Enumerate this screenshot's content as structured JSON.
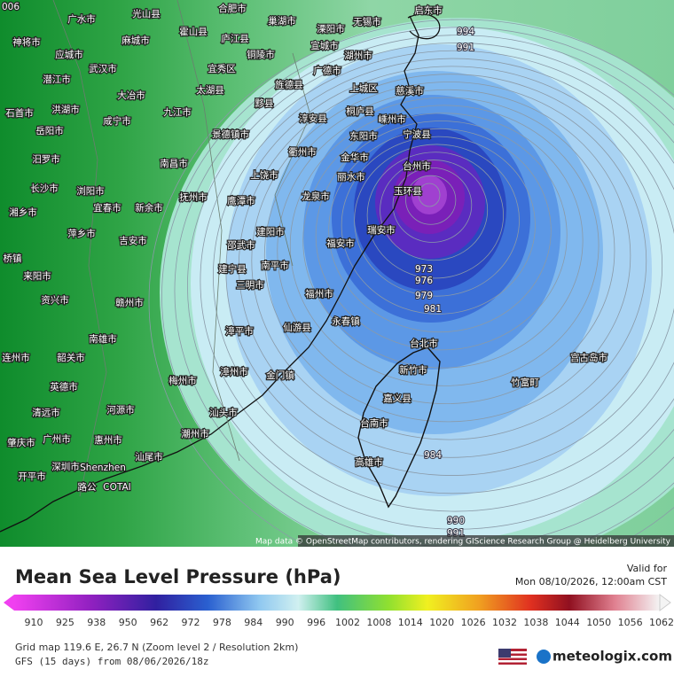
{
  "map": {
    "corner_label": "006",
    "cities": [
      "广水市",
      "光山县",
      "合肥市",
      "巢湖市",
      "溧阳市",
      "无锡市",
      "启东市",
      "神将市",
      "麻城市",
      "霍山县",
      "庐江县",
      "铜陵市",
      "宣城市",
      "湖州市",
      "应城市",
      "武汉市",
      "宜秀区",
      "广德市",
      "潜江市",
      "大冶市",
      "太湖县",
      "旌德县",
      "上城区",
      "慈溪市",
      "石首市",
      "洪湖市",
      "咸宁市",
      "九江市",
      "黟县",
      "淳安县",
      "桐庐县",
      "嵊州市",
      "岳阳市",
      "景德镇市",
      "东阳市",
      "宁波县",
      "汨罗市",
      "南昌市",
      "衢州市",
      "金华市",
      "台州市",
      "长沙市",
      "浏阳市",
      "上饶市",
      "丽水市",
      "玉环县",
      "宜春市",
      "新余市",
      "抚州市",
      "鹰潭市",
      "龙泉市",
      "湘乡市",
      "萍乡市",
      "建阳市",
      "福安市",
      "瑞安市",
      "吉安市",
      "邵武市",
      "桥镇",
      "来阳市",
      "建宁县",
      "南平市",
      "三明市",
      "资兴市",
      "福州市",
      "赣州市",
      "永春镇",
      "南雄市",
      "漳平市",
      "仙游县",
      "连州市",
      "韶关市",
      "台北市",
      "新竹市",
      "宫古岛市",
      "梅州市",
      "漳州市",
      "金门镇",
      "竹富町",
      "英德市",
      "河源市",
      "汕头市",
      "嘉义县",
      "清远市",
      "台南市",
      "潮州市",
      "肇庆市",
      "广州市",
      "惠州市",
      "高雄市",
      "汕尾市",
      "深圳市",
      "Shenzhen",
      "开平市",
      "路公",
      "COTAI"
    ],
    "isobar_labels": [
      "994",
      "991",
      "973",
      "976",
      "979",
      "981",
      "984",
      "990",
      "991"
    ],
    "attribution": "Map data © OpenStreetMap contributors, rendering GIScience Research Group @ Heidelberg University"
  },
  "legend": {
    "title": "Mean Sea Level Pressure (hPa)",
    "valid_label": "Valid for",
    "valid_time": "Mon 08/10/2026, 12:00am CST",
    "ticks": [
      910,
      925,
      938,
      950,
      962,
      972,
      978,
      984,
      990,
      996,
      1002,
      1008,
      1014,
      1020,
      1026,
      1032,
      1038,
      1044,
      1050,
      1056,
      1062
    ]
  },
  "footer": {
    "grid": "Grid map 119.6 E, 26.7 N (Zoom level 2 / Resolution 2km)",
    "model": "GFS (15 days) from 08/06/2026/18z",
    "brand": "meteologix.com"
  }
}
